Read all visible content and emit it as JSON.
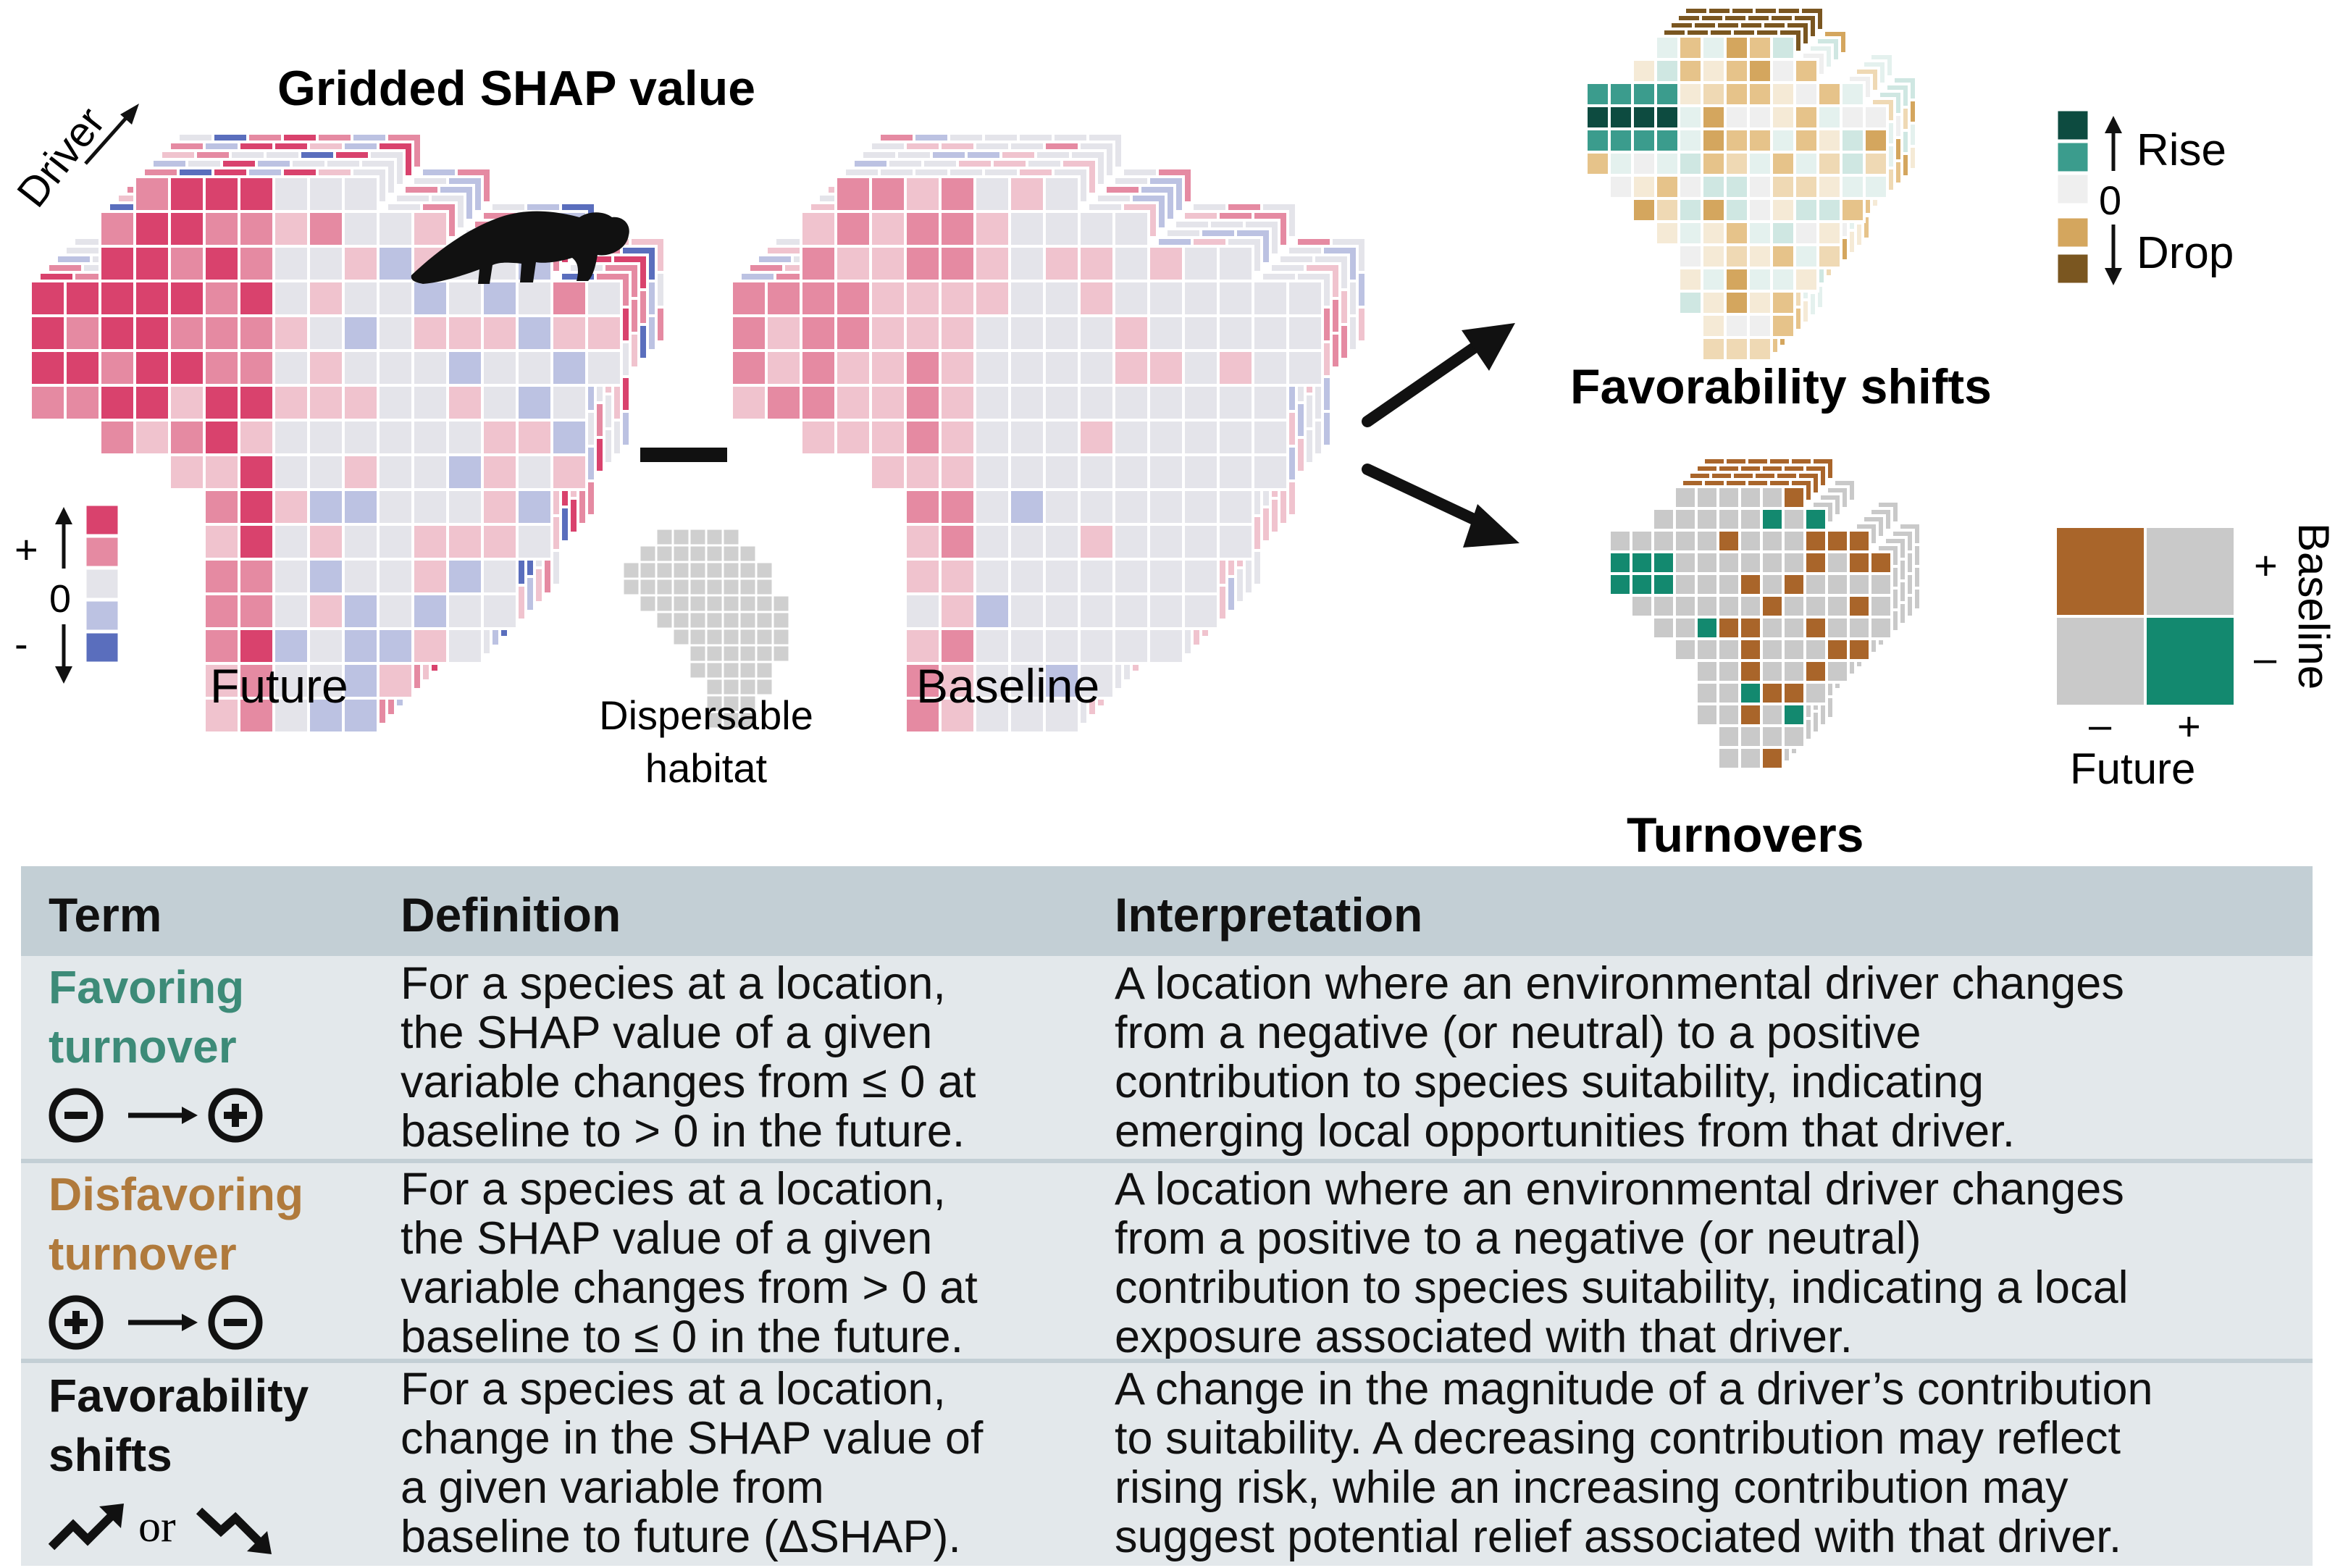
{
  "diagram": {
    "title": "Gridded SHAP value",
    "driver_label": "Driver",
    "future_label": "Future",
    "baseline_label": "Baseline",
    "minus_symbol": "–",
    "dispersable_line1": "Dispersable",
    "dispersable_line2": "habitat",
    "shap_legend": {
      "plus": "+",
      "zero": "0",
      "minus": "-"
    },
    "favorability_title": "Favorability shifts",
    "turnovers_title": "Turnovers",
    "fav_legend": {
      "rise": "Rise",
      "zero": "0",
      "drop": "Drop"
    },
    "turn_legend": {
      "baseline_axis": "Baseline",
      "future_axis": "Future",
      "plus": "+",
      "minus": "–"
    },
    "colors": {
      "pos_strong": "#d9426d",
      "pos_mid": "#e58aa2",
      "pos_light": "#f0c3ce",
      "neutral": "#e4e4ea",
      "neg_light": "#bcc2e2",
      "neg_strong": "#5a6ebd",
      "rise_strong": "#0d4b40",
      "rise_mid": "#3b9c8d",
      "drop_mid": "#d4a65e",
      "drop_strong": "#7a5620",
      "turn_brown": "#a9652a",
      "turn_green": "#13896f",
      "turn_gray": "#c9c9c9"
    }
  },
  "table": {
    "headers": {
      "term": "Term",
      "definition": "Definition",
      "interpretation": "Interpretation"
    },
    "rows": [
      {
        "term_line1": "Favoring",
        "term_line2": "turnover",
        "symbol_from": "⊖",
        "symbol_to": "⊕",
        "definition": "For a species at a location,\nthe SHAP value of a given\nvariable changes from ≤ 0 at\nbaseline to > 0 in the future.",
        "interpretation": "A location where an environmental driver changes\nfrom a negative (or neutral) to a positive\ncontribution to species suitability, indicating\nemerging local opportunities from that driver."
      },
      {
        "term_line1": "Disfavoring",
        "term_line2": "turnover",
        "symbol_from": "⊕",
        "symbol_to": "⊖",
        "definition": "For a species at a location,\nthe SHAP value of a given\nvariable changes from > 0 at\nbaseline to ≤ 0 in the future.",
        "interpretation": "A location where an environmental driver changes\nfrom a positive to a negative (or neutral)\ncontribution to species suitability, indicating a local\nexposure associated with that driver."
      },
      {
        "term_line1": "Favorability",
        "term_line2": "shifts",
        "symbol_or": "or",
        "definition": "For a species at a location,\nchange in the SHAP value of\na given variable from\nbaseline to future (ΔSHAP).",
        "interpretation": "A change in the magnitude of a driver’s contribution\nto suitability. A decreasing contribution may reflect\nrising risk, while an increasing contribution may\nsuggest potential relief associated with that driver."
      }
    ]
  }
}
